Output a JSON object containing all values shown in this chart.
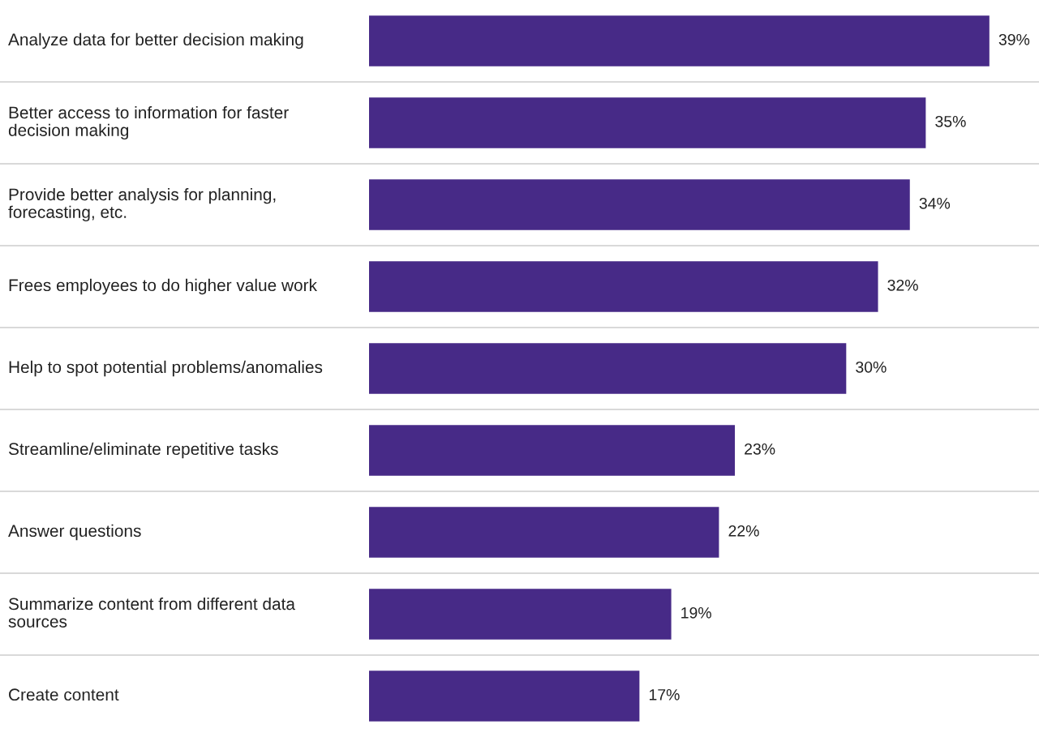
{
  "chart_data": {
    "type": "bar",
    "orientation": "horizontal",
    "categories": [
      "Analyze data for better decision making",
      "Better access to information for faster decision making",
      "Provide better analysis for planning, forecasting, etc.",
      "Frees employees to do higher value work",
      "Help to spot potential problems/anomalies",
      "Streamline/eliminate repetitive tasks",
      "Answer questions",
      "Summarize content from different data sources",
      "Create content"
    ],
    "values": [
      39,
      35,
      34,
      32,
      30,
      23,
      22,
      19,
      17
    ],
    "value_labels": [
      "39%",
      "35%",
      "34%",
      "32%",
      "30%",
      "23%",
      "22%",
      "19%",
      "17%"
    ],
    "color": "#472a87",
    "grid": "y"
  }
}
